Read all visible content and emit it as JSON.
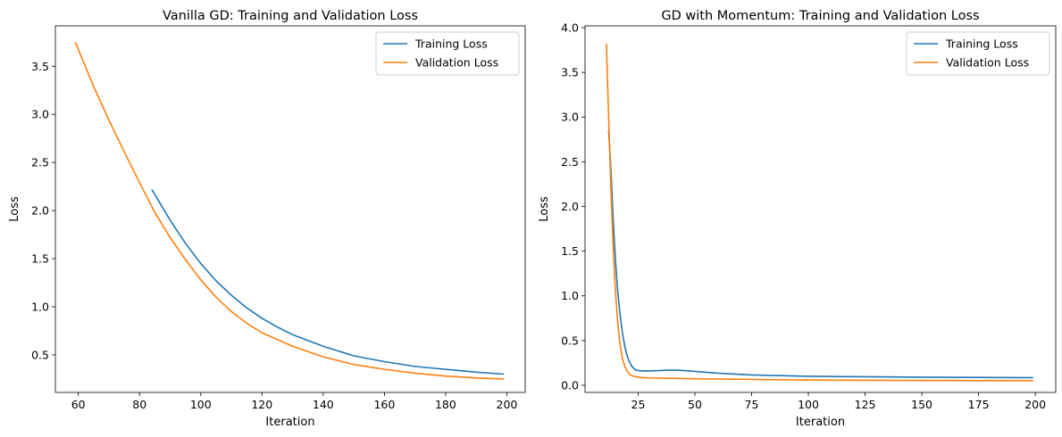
{
  "chart_data": [
    {
      "type": "line",
      "title": "Vanilla GD: Training and Validation Loss",
      "xlabel": "Iteration",
      "ylabel": "Loss",
      "xlim": [
        52.5,
        206
      ],
      "ylim": [
        0.11,
        3.92
      ],
      "xticks": [
        60,
        80,
        100,
        120,
        140,
        160,
        180,
        200
      ],
      "yticks": [
        0.5,
        1.0,
        1.5,
        2.0,
        2.5,
        3.0,
        3.5
      ],
      "grid": false,
      "legend": "top-right",
      "series": [
        {
          "name": "Training Loss",
          "color": "#1f77b4",
          "x": [
            84,
            90,
            95,
            100,
            105,
            110,
            115,
            120,
            125,
            130,
            140,
            150,
            160,
            170,
            180,
            190,
            199
          ],
          "y": [
            2.22,
            1.9,
            1.66,
            1.45,
            1.27,
            1.12,
            0.99,
            0.88,
            0.79,
            0.71,
            0.59,
            0.49,
            0.43,
            0.38,
            0.35,
            0.32,
            0.3
          ]
        },
        {
          "name": "Validation Loss",
          "color": "#ff7f0e",
          "x": [
            59,
            65,
            70,
            75,
            80,
            85,
            90,
            95,
            100,
            105,
            110,
            115,
            120,
            130,
            140,
            150,
            160,
            170,
            180,
            190,
            199
          ],
          "y": [
            3.75,
            3.29,
            2.94,
            2.61,
            2.29,
            1.98,
            1.72,
            1.49,
            1.28,
            1.1,
            0.95,
            0.83,
            0.73,
            0.59,
            0.48,
            0.4,
            0.35,
            0.31,
            0.28,
            0.26,
            0.25
          ]
        }
      ]
    },
    {
      "type": "line",
      "title": "GD with Momentum: Training and Validation Loss",
      "xlabel": "Iteration",
      "ylabel": "Loss",
      "xlim": [
        1.6,
        209
      ],
      "ylim": [
        -0.08,
        4.02
      ],
      "xticks": [
        25,
        50,
        75,
        100,
        125,
        150,
        175,
        200
      ],
      "yticks": [
        0.0,
        0.5,
        1.0,
        1.5,
        2.0,
        2.5,
        3.0,
        3.5,
        4.0
      ],
      "grid": false,
      "legend": "top-right",
      "series": [
        {
          "name": "Training Loss",
          "color": "#1f77b4",
          "x": [
            12,
            13,
            14,
            15,
            16,
            17,
            18,
            19,
            20,
            21,
            22,
            23,
            24,
            25,
            27,
            30,
            35,
            40,
            45,
            50,
            60,
            75,
            100,
            125,
            150,
            175,
            199
          ],
          "y": [
            2.85,
            2.4,
            1.85,
            1.4,
            1.05,
            0.8,
            0.6,
            0.45,
            0.34,
            0.27,
            0.22,
            0.19,
            0.17,
            0.165,
            0.16,
            0.16,
            0.165,
            0.17,
            0.165,
            0.155,
            0.135,
            0.115,
            0.1,
            0.095,
            0.09,
            0.088,
            0.085
          ]
        },
        {
          "name": "Validation Loss",
          "color": "#ff7f0e",
          "x": [
            11,
            12,
            13,
            14,
            15,
            16,
            17,
            18,
            19,
            20,
            21,
            22,
            23,
            24,
            25,
            27,
            30,
            40,
            50,
            75,
            100,
            125,
            150,
            175,
            199
          ],
          "y": [
            3.82,
            3.0,
            2.2,
            1.55,
            1.05,
            0.7,
            0.46,
            0.31,
            0.22,
            0.165,
            0.13,
            0.11,
            0.1,
            0.095,
            0.09,
            0.085,
            0.082,
            0.078,
            0.072,
            0.065,
            0.058,
            0.055,
            0.053,
            0.052,
            0.05
          ]
        }
      ]
    }
  ]
}
